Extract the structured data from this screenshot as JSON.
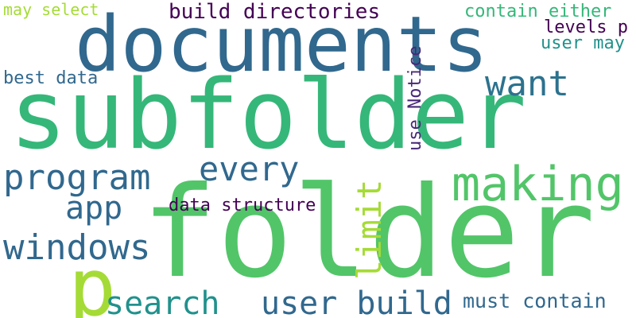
{
  "palette": {
    "teal_green": "#35b779",
    "green": "#52c569",
    "light_green": "#a5db36",
    "blue": "#31688e",
    "blue_teal": "#2c728e",
    "teal": "#21918c",
    "purple": "#482878",
    "dark_purple": "#440154"
  },
  "words": [
    {
      "id": "folder",
      "text": "folder",
      "color": "#52c569"
    },
    {
      "id": "subfolder",
      "text": "subfolder",
      "color": "#35b779"
    },
    {
      "id": "documents",
      "text": "documents",
      "color": "#31688e"
    },
    {
      "id": "making",
      "text": "making",
      "color": "#52c569"
    },
    {
      "id": "want",
      "text": "want",
      "color": "#2c728e"
    },
    {
      "id": "program",
      "text": "program",
      "color": "#31688e"
    },
    {
      "id": "every",
      "text": "every",
      "color": "#31688e"
    },
    {
      "id": "app",
      "text": "app",
      "color": "#31688e"
    },
    {
      "id": "windows",
      "text": "windows",
      "color": "#31688e"
    },
    {
      "id": "p",
      "text": "p",
      "color": "#a5db36"
    },
    {
      "id": "search",
      "text": "search",
      "color": "#21918c"
    },
    {
      "id": "user_build",
      "text": "user build",
      "color": "#31688e"
    },
    {
      "id": "must_contain",
      "text": "must contain",
      "color": "#31688e"
    },
    {
      "id": "build_directories",
      "text": "build directories",
      "color": "#440154"
    },
    {
      "id": "contain_either",
      "text": "contain either",
      "color": "#35b779"
    },
    {
      "id": "levels_p",
      "text": "levels p",
      "color": "#440154"
    },
    {
      "id": "user_may",
      "text": "user may",
      "color": "#21918c"
    },
    {
      "id": "may_select",
      "text": "may select",
      "color": "#a5db36"
    },
    {
      "id": "best_data",
      "text": "best data",
      "color": "#31688e"
    },
    {
      "id": "data_structure",
      "text": "data structure",
      "color": "#440154"
    },
    {
      "id": "limit",
      "text": "limit",
      "color": "#a5db36"
    },
    {
      "id": "use_notice",
      "text": "use Notice",
      "color": "#482878"
    }
  ]
}
